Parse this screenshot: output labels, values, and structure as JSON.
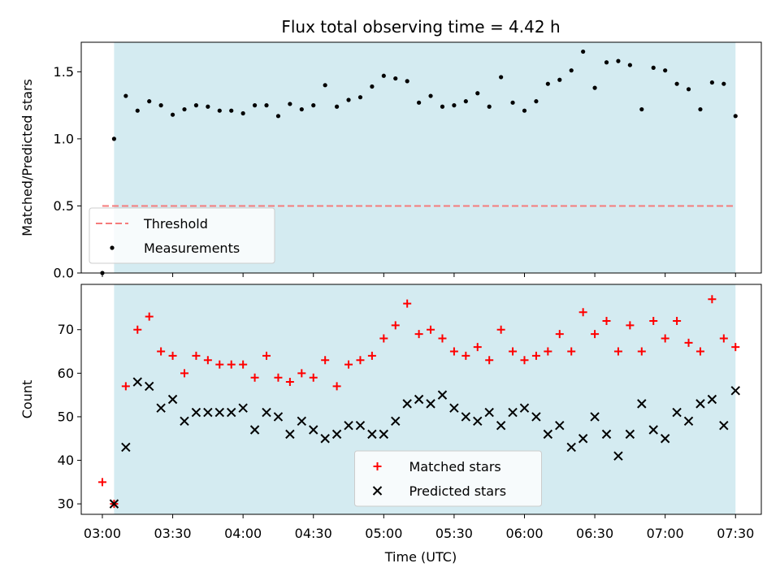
{
  "chart_data": {
    "title": "Flux total observing time = 4.42 h",
    "xlabel": "Time (UTC)",
    "x_ticks": [
      "03:00",
      "03:30",
      "04:00",
      "04:30",
      "05:00",
      "05:30",
      "06:00",
      "06:30",
      "07:00",
      "07:30"
    ],
    "xlim": [
      "02:51",
      "07:41"
    ],
    "observing_window": [
      "03:05",
      "07:30"
    ],
    "colors": {
      "window": "#d4ebf1",
      "threshold": "#f57b7b",
      "measurements": "#000000",
      "matched": "#ff0000",
      "predicted": "#000000"
    },
    "panels": [
      {
        "type": "scatter",
        "ylabel": "Matched/Predicted stars",
        "ylim": [
          0,
          1.72
        ],
        "y_ticks": [
          "0.0",
          "0.5",
          "1.0",
          "1.5"
        ],
        "legend_position": "lower-left",
        "threshold": {
          "name": "Threshold",
          "y": 0.5,
          "x_range": [
            "03:00",
            "07:30"
          ]
        },
        "series": [
          {
            "name": "Measurements",
            "marker": "dot",
            "x": [
              "03:00",
              "03:05",
              "03:10",
              "03:15",
              "03:20",
              "03:25",
              "03:30",
              "03:35",
              "03:40",
              "03:45",
              "03:50",
              "03:55",
              "04:00",
              "04:05",
              "04:10",
              "04:15",
              "04:20",
              "04:25",
              "04:30",
              "04:35",
              "04:40",
              "04:45",
              "04:50",
              "04:55",
              "05:00",
              "05:05",
              "05:10",
              "05:15",
              "05:20",
              "05:25",
              "05:30",
              "05:35",
              "05:40",
              "05:45",
              "05:50",
              "05:55",
              "06:00",
              "06:05",
              "06:10",
              "06:15",
              "06:20",
              "06:25",
              "06:30",
              "06:35",
              "06:40",
              "06:45",
              "06:50",
              "06:55",
              "07:00",
              "07:05",
              "07:10",
              "07:15",
              "07:20",
              "07:25",
              "07:30"
            ],
            "y": [
              0.0,
              1.0,
              1.32,
              1.21,
              1.28,
              1.25,
              1.18,
              1.22,
              1.25,
              1.24,
              1.21,
              1.21,
              1.19,
              1.25,
              1.25,
              1.17,
              1.26,
              1.22,
              1.25,
              1.4,
              1.24,
              1.29,
              1.31,
              1.39,
              1.47,
              1.45,
              1.43,
              1.27,
              1.32,
              1.24,
              1.25,
              1.28,
              1.34,
              1.24,
              1.46,
              1.27,
              1.21,
              1.28,
              1.41,
              1.44,
              1.51,
              1.65,
              1.38,
              1.57,
              1.58,
              1.55,
              1.22,
              1.53,
              1.51,
              1.41,
              1.37,
              1.22,
              1.42,
              1.41,
              1.17
            ]
          }
        ]
      },
      {
        "type": "scatter",
        "ylabel": "Count",
        "ylim": [
          27.6,
          80.4
        ],
        "y_ticks": [
          "30",
          "40",
          "50",
          "60",
          "70"
        ],
        "legend_position": "lower-center",
        "series": [
          {
            "name": "Matched stars",
            "marker": "plus",
            "x": [
              "03:00",
              "03:05",
              "03:10",
              "03:15",
              "03:20",
              "03:25",
              "03:30",
              "03:35",
              "03:40",
              "03:45",
              "03:50",
              "03:55",
              "04:00",
              "04:05",
              "04:10",
              "04:15",
              "04:20",
              "04:25",
              "04:30",
              "04:35",
              "04:40",
              "04:45",
              "04:50",
              "04:55",
              "05:00",
              "05:05",
              "05:10",
              "05:15",
              "05:20",
              "05:25",
              "05:30",
              "05:35",
              "05:40",
              "05:45",
              "05:50",
              "05:55",
              "06:00",
              "06:05",
              "06:10",
              "06:15",
              "06:20",
              "06:25",
              "06:30",
              "06:35",
              "06:40",
              "06:45",
              "06:50",
              "06:55",
              "07:00",
              "07:05",
              "07:10",
              "07:15",
              "07:20",
              "07:25",
              "07:30"
            ],
            "y": [
              35,
              30,
              57,
              70,
              73,
              65,
              64,
              60,
              64,
              63,
              62,
              62,
              62,
              59,
              64,
              59,
              58,
              60,
              59,
              63,
              57,
              62,
              63,
              64,
              68,
              71,
              76,
              69,
              70,
              68,
              65,
              64,
              66,
              63,
              70,
              65,
              63,
              64,
              65,
              69,
              65,
              74,
              69,
              72,
              65,
              71,
              65,
              72,
              68,
              72,
              67,
              65,
              77,
              68,
              66
            ]
          },
          {
            "name": "Predicted stars",
            "marker": "x",
            "x": [
              "03:05",
              "03:10",
              "03:15",
              "03:20",
              "03:25",
              "03:30",
              "03:35",
              "03:40",
              "03:45",
              "03:50",
              "03:55",
              "04:00",
              "04:05",
              "04:10",
              "04:15",
              "04:20",
              "04:25",
              "04:30",
              "04:35",
              "04:40",
              "04:45",
              "04:50",
              "04:55",
              "05:00",
              "05:05",
              "05:10",
              "05:15",
              "05:20",
              "05:25",
              "05:30",
              "05:35",
              "05:40",
              "05:45",
              "05:50",
              "05:55",
              "06:00",
              "06:05",
              "06:10",
              "06:15",
              "06:20",
              "06:25",
              "06:30",
              "06:35",
              "06:40",
              "06:45",
              "06:50",
              "06:55",
              "07:00",
              "07:05",
              "07:10",
              "07:15",
              "07:20",
              "07:25",
              "07:30"
            ],
            "y": [
              30,
              43,
              58,
              57,
              52,
              54,
              49,
              51,
              51,
              51,
              51,
              52,
              47,
              51,
              50,
              46,
              49,
              47,
              45,
              46,
              48,
              48,
              46,
              46,
              49,
              53,
              54,
              53,
              55,
              52,
              50,
              49,
              51,
              48,
              51,
              52,
              50,
              46,
              48,
              43,
              45,
              50,
              46,
              41,
              46,
              53,
              47,
              45,
              51,
              49,
              53,
              54,
              48,
              56
            ]
          }
        ]
      }
    ]
  }
}
